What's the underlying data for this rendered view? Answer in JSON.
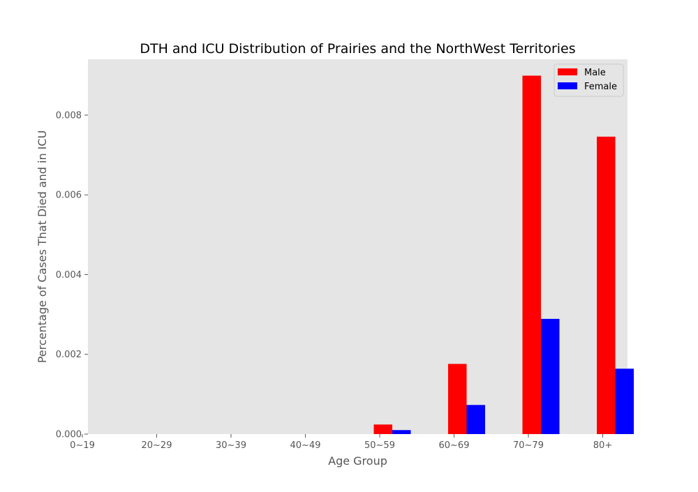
{
  "chart_data": {
    "type": "bar",
    "title": "DTH and ICU Distribution of Prairies and the NorthWest Territories",
    "xlabel": "Age Group",
    "ylabel": "Percentage of Cases That Died and in ICU",
    "categories": [
      "0~19",
      "20~29",
      "30~39",
      "40~49",
      "50~59",
      "60~69",
      "70~79",
      "80+"
    ],
    "series": [
      {
        "name": "Male",
        "color": "#ff0000",
        "values": [
          0,
          0,
          0,
          0,
          0.00024,
          0.00176,
          0.00899,
          0.00746
        ]
      },
      {
        "name": "Female",
        "color": "#0000ff",
        "values": [
          0,
          0,
          0,
          0,
          0.0001,
          0.00073,
          0.00289,
          0.00164
        ]
      }
    ],
    "ylim": [
      0,
      0.0094
    ],
    "yticks": [
      "0.000",
      "0.002",
      "0.004",
      "0.006",
      "0.008"
    ],
    "grid": false,
    "legend_position": "top-right",
    "background_color": "#e5e5e5"
  }
}
